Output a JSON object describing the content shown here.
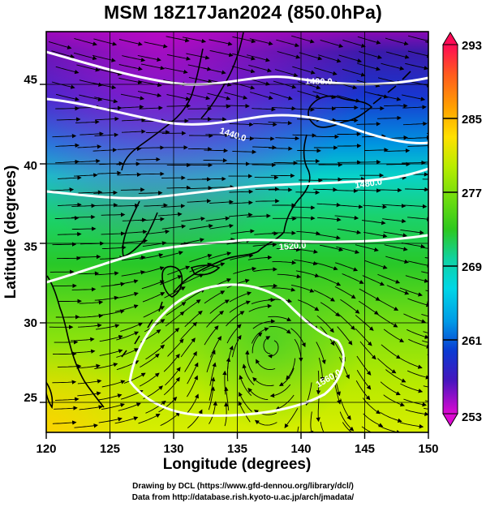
{
  "title": "MSM 18Z17Jan2024 (850.0hPa)",
  "x_axis": {
    "label": "Longitude (degrees)",
    "range": [
      120,
      150
    ],
    "ticks": [
      "120",
      "125",
      "130",
      "135",
      "140",
      "145",
      "150"
    ]
  },
  "y_axis": {
    "label": "Latitude  (degrees)",
    "range": [
      22.4,
      47.6
    ],
    "ticks": [
      "25",
      "30",
      "35",
      "40",
      "45"
    ]
  },
  "colorbar": {
    "range": [
      253,
      293
    ],
    "labels": [
      "293",
      "285",
      "277",
      "269",
      "261",
      "253"
    ],
    "colors": [
      "#ff0a55",
      "#ff5a1e",
      "#ffa000",
      "#ffe000",
      "#b9ec00",
      "#2ec81e",
      "#10d2a0",
      "#00d7e6",
      "#009ae6",
      "#0a3ad2",
      "#4616be",
      "#8a0ab4",
      "#dc0ad2"
    ]
  },
  "contours": [
    {
      "label": "1400.0"
    },
    {
      "label": "1440.0"
    },
    {
      "label": "1480.0"
    },
    {
      "label": "1520.0"
    },
    {
      "label": "1560.0"
    }
  ],
  "credit": {
    "line1": "Drawing by DCL (https://www.gfd-dennou.org/library/dcl/)",
    "line2": "Data from http://database.rish.kyoto-u.ac.jp/arch/jmadata/"
  }
}
